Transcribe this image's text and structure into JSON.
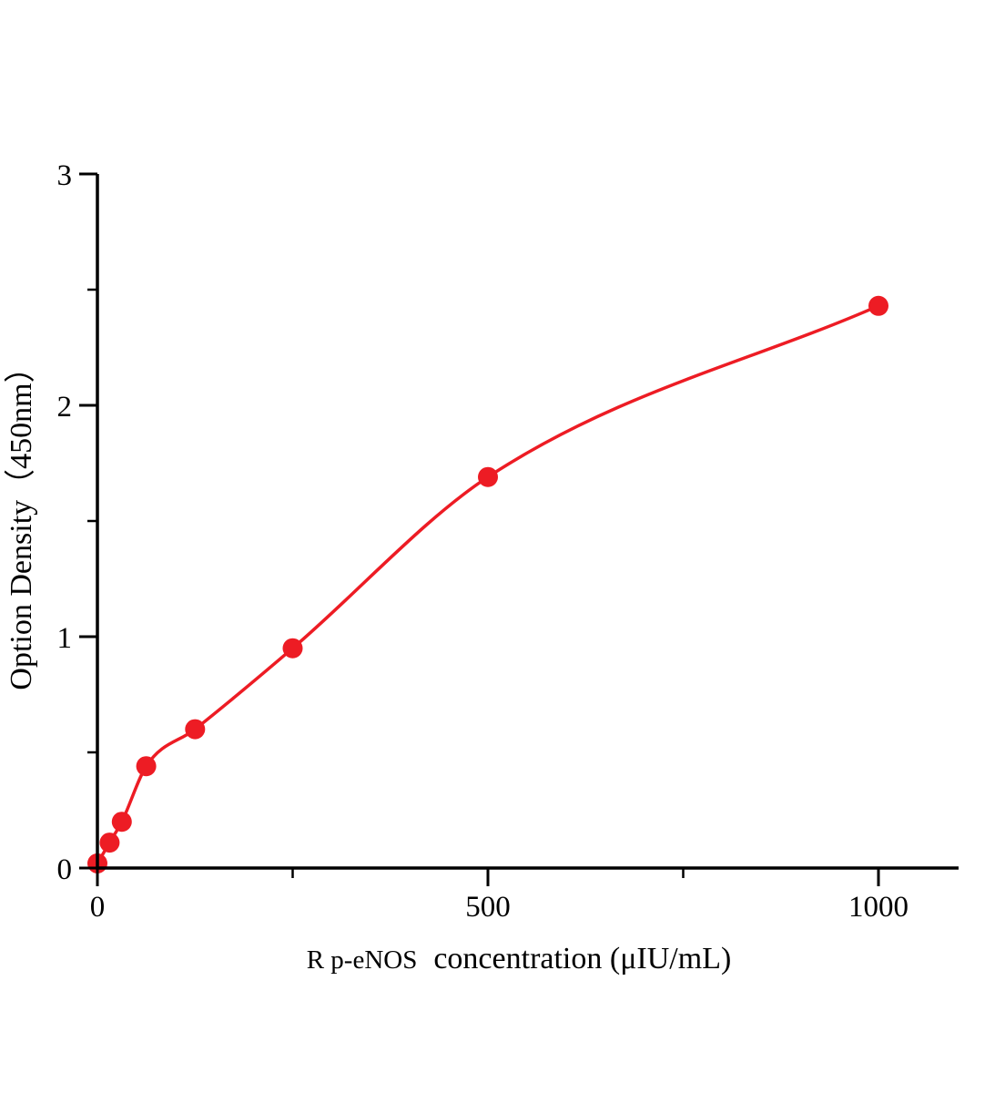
{
  "chart_data": {
    "type": "scatter",
    "title": "",
    "xlabel_prefix": "R p-eNOS",
    "xlabel_main": "concentration (μIU/mL)",
    "ylabel": "Option Density（450nm）",
    "x": [
      0,
      15.6,
      31.2,
      62.5,
      125,
      250,
      500,
      1000
    ],
    "y": [
      0.02,
      0.11,
      0.2,
      0.44,
      0.6,
      0.95,
      1.69,
      2.43
    ],
    "fit_curve": "smooth monotone curve through all points",
    "xlim": [
      0,
      1103
    ],
    "ylim": [
      0,
      3
    ],
    "x_major_ticks": [
      0,
      500,
      1000
    ],
    "x_minor_ticks": [
      250,
      750
    ],
    "y_major_ticks": [
      0,
      1,
      2,
      3
    ],
    "y_minor_ticks": [
      0.5,
      1.5,
      2.5
    ],
    "grid": false,
    "legend": false,
    "point_color": "#ed1c24",
    "line_color": "#ed1c24",
    "axis_color": "#000000",
    "background_color": "#ffffff"
  }
}
